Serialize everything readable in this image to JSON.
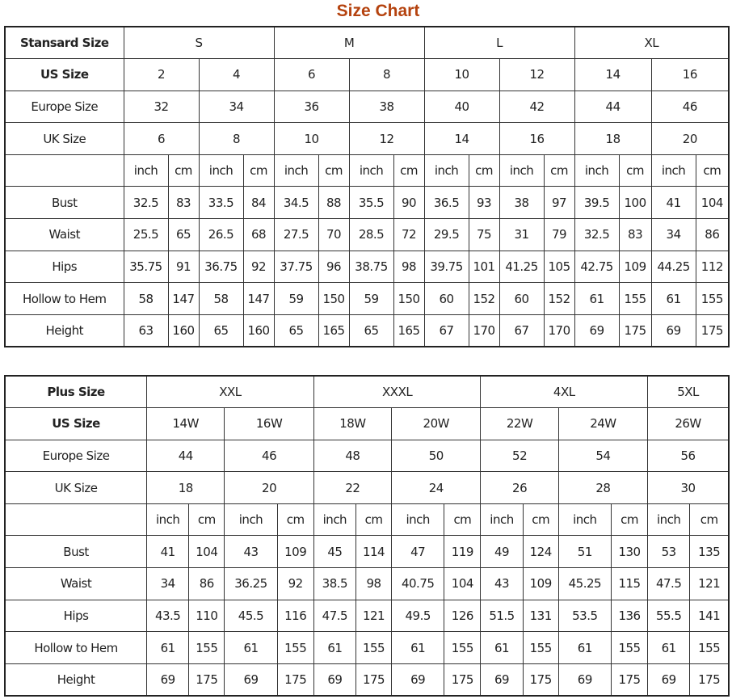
{
  "title": "Size Chart",
  "tables": [
    {
      "header_label": "Stansard Size",
      "groups": [
        {
          "label": "S",
          "span": 2
        },
        {
          "label": "M",
          "span": 2
        },
        {
          "label": "L",
          "span": 2
        },
        {
          "label": "XL",
          "span": 2
        }
      ],
      "size_rows": [
        {
          "label": "US Size",
          "values": [
            "2",
            "4",
            "6",
            "8",
            "10",
            "12",
            "14",
            "16"
          ]
        },
        {
          "label": "Europe Size",
          "values": [
            "32",
            "34",
            "36",
            "38",
            "40",
            "42",
            "44",
            "46"
          ]
        },
        {
          "label": "UK Size",
          "values": [
            "6",
            "8",
            "10",
            "12",
            "14",
            "16",
            "18",
            "20"
          ]
        }
      ],
      "units": [
        "inch",
        "cm"
      ],
      "measure_rows": [
        {
          "label": "Bust",
          "values": [
            "32.5",
            "83",
            "33.5",
            "84",
            "34.5",
            "88",
            "35.5",
            "90",
            "36.5",
            "93",
            "38",
            "97",
            "39.5",
            "100",
            "41",
            "104"
          ]
        },
        {
          "label": "Waist",
          "values": [
            "25.5",
            "65",
            "26.5",
            "68",
            "27.5",
            "70",
            "28.5",
            "72",
            "29.5",
            "75",
            "31",
            "79",
            "32.5",
            "83",
            "34",
            "86"
          ]
        },
        {
          "label": "Hips",
          "values": [
            "35.75",
            "91",
            "36.75",
            "92",
            "37.75",
            "96",
            "38.75",
            "98",
            "39.75",
            "101",
            "41.25",
            "105",
            "42.75",
            "109",
            "44.25",
            "112"
          ]
        },
        {
          "label": "Hollow to Hem",
          "values": [
            "58",
            "147",
            "58",
            "147",
            "59",
            "150",
            "59",
            "150",
            "60",
            "152",
            "60",
            "152",
            "61",
            "155",
            "61",
            "155"
          ]
        },
        {
          "label": "Height",
          "values": [
            "63",
            "160",
            "65",
            "160",
            "65",
            "165",
            "65",
            "165",
            "67",
            "170",
            "67",
            "170",
            "69",
            "175",
            "69",
            "175"
          ]
        }
      ]
    },
    {
      "header_label": "Plus Size",
      "groups": [
        {
          "label": "XXL",
          "span": 2
        },
        {
          "label": "XXXL",
          "span": 2
        },
        {
          "label": "4XL",
          "span": 2
        },
        {
          "label": "5XL",
          "span": 1
        }
      ],
      "size_rows": [
        {
          "label": "US Size",
          "values": [
            "14W",
            "16W",
            "18W",
            "20W",
            "22W",
            "24W",
            "26W"
          ]
        },
        {
          "label": "Europe Size",
          "values": [
            "44",
            "46",
            "48",
            "50",
            "52",
            "54",
            "56"
          ]
        },
        {
          "label": "UK Size",
          "values": [
            "18",
            "20",
            "22",
            "24",
            "26",
            "28",
            "30"
          ]
        }
      ],
      "units": [
        "inch",
        "cm"
      ],
      "measure_rows": [
        {
          "label": "Bust",
          "values": [
            "41",
            "104",
            "43",
            "109",
            "45",
            "114",
            "47",
            "119",
            "49",
            "124",
            "51",
            "130",
            "53",
            "135"
          ]
        },
        {
          "label": "Waist",
          "values": [
            "34",
            "86",
            "36.25",
            "92",
            "38.5",
            "98",
            "40.75",
            "104",
            "43",
            "109",
            "45.25",
            "115",
            "47.5",
            "121"
          ]
        },
        {
          "label": "Hips",
          "values": [
            "43.5",
            "110",
            "45.5",
            "116",
            "47.5",
            "121",
            "49.5",
            "126",
            "51.5",
            "131",
            "53.5",
            "136",
            "55.5",
            "141"
          ]
        },
        {
          "label": "Hollow to Hem",
          "values": [
            "61",
            "155",
            "61",
            "155",
            "61",
            "155",
            "61",
            "155",
            "61",
            "155",
            "61",
            "155",
            "61",
            "155"
          ]
        },
        {
          "label": "Height",
          "values": [
            "69",
            "175",
            "69",
            "175",
            "69",
            "175",
            "69",
            "175",
            "69",
            "175",
            "69",
            "175",
            "69",
            "175"
          ]
        }
      ]
    }
  ]
}
